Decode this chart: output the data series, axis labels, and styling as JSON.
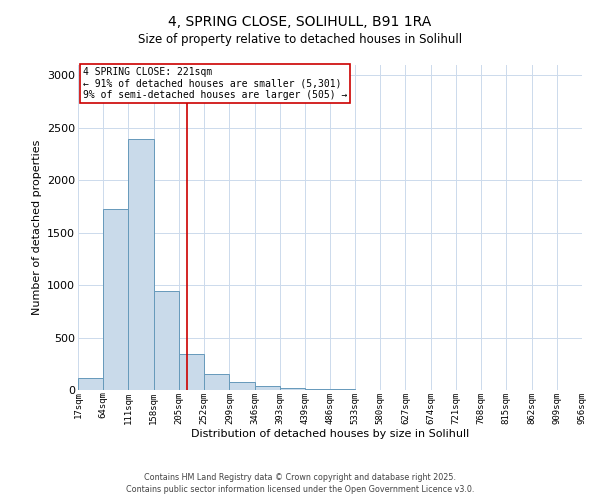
{
  "title": "4, SPRING CLOSE, SOLIHULL, B91 1RA",
  "subtitle": "Size of property relative to detached houses in Solihull",
  "xlabel": "Distribution of detached houses by size in Solihull",
  "ylabel": "Number of detached properties",
  "bar_color": "#c9daea",
  "bar_edge_color": "#6699bb",
  "background_color": "#ffffff",
  "grid_color": "#ccdaec",
  "bin_edges": [
    17,
    64,
    111,
    158,
    205,
    252,
    299,
    346,
    393,
    439,
    486,
    533,
    580,
    627,
    674,
    721,
    768,
    815,
    862,
    909,
    956
  ],
  "bin_labels": [
    "17sqm",
    "64sqm",
    "111sqm",
    "158sqm",
    "205sqm",
    "252sqm",
    "299sqm",
    "346sqm",
    "393sqm",
    "439sqm",
    "486sqm",
    "533sqm",
    "580sqm",
    "627sqm",
    "674sqm",
    "721sqm",
    "768sqm",
    "815sqm",
    "862sqm",
    "909sqm",
    "956sqm"
  ],
  "bar_heights": [
    110,
    1730,
    2390,
    940,
    340,
    150,
    75,
    35,
    20,
    5,
    5,
    0,
    0,
    0,
    0,
    0,
    0,
    0,
    0,
    0
  ],
  "property_size": 221,
  "vline_color": "#cc0000",
  "annotation_title": "4 SPRING CLOSE: 221sqm",
  "annotation_line1": "← 91% of detached houses are smaller (5,301)",
  "annotation_line2": "9% of semi-detached houses are larger (505) →",
  "annotation_box_color": "#ffffff",
  "annotation_box_edge": "#cc0000",
  "ylim": [
    0,
    3100
  ],
  "yticks": [
    0,
    500,
    1000,
    1500,
    2000,
    2500,
    3000
  ],
  "footnote1": "Contains HM Land Registry data © Crown copyright and database right 2025.",
  "footnote2": "Contains public sector information licensed under the Open Government Licence v3.0."
}
